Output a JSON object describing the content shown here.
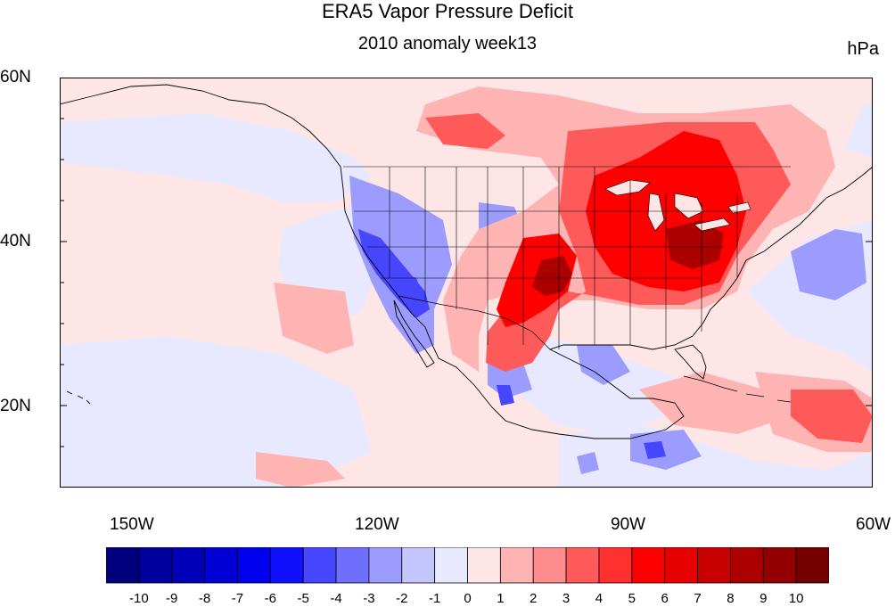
{
  "title": "ERA5 Vapor Pressure Deficit",
  "subtitle": "2010 anomaly week13",
  "units": "hPa",
  "lat_labels": [
    "60N",
    "40N",
    "20N"
  ],
  "lon_labels": [
    "150W",
    "120W",
    "90W",
    "60W"
  ],
  "colorbar": {
    "labels": [
      "-10",
      "-9",
      "-8",
      "-7",
      "-6",
      "-5",
      "-4",
      "-3",
      "-2",
      "-1",
      "0",
      "1",
      "2",
      "3",
      "4",
      "5",
      "6",
      "7",
      "8",
      "9",
      "10"
    ],
    "colors": [
      "#00007f",
      "#00009e",
      "#0000b8",
      "#0000d4",
      "#0000ee",
      "#1010ff",
      "#4646ff",
      "#6e6eff",
      "#9c9cff",
      "#c6c6ff",
      "#e8e8ff",
      "#ffe6e6",
      "#ffb4b4",
      "#ff8c8c",
      "#ff5a5a",
      "#ff3030",
      "#ff0000",
      "#e60000",
      "#c80000",
      "#ac0000",
      "#940000",
      "#760000"
    ]
  },
  "map": {
    "projection": "cylindrical-equidistant",
    "lon_range": [
      "-159",
      "-60"
    ],
    "lat_range": [
      "10",
      "60"
    ],
    "features": [
      "coastlines",
      "us-state-boundaries",
      "country-boundaries"
    ]
  }
}
